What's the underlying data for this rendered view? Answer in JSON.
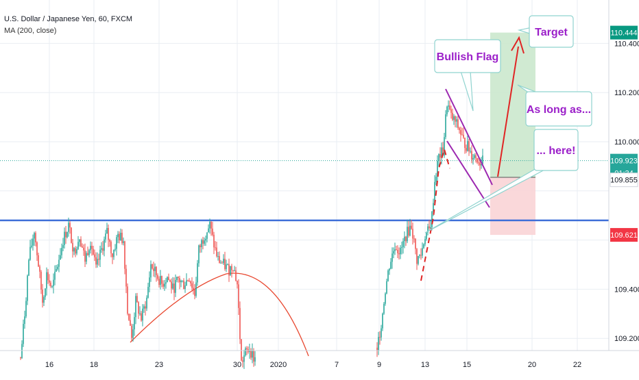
{
  "header": {
    "title": "U.S. Dollar / Japanese Yen, 60, FXCM",
    "indicator": "MA (200, close)"
  },
  "chart_data": {
    "type": "candlestick",
    "x_ticks": [
      "16",
      "18",
      "23",
      "30",
      "2020",
      "7",
      "9",
      "13",
      "15",
      "20",
      "22"
    ],
    "y_ticks": [
      "110.400",
      "110.200",
      "110.000",
      "109.400",
      "109.200"
    ],
    "ylim": [
      109.18,
      110.55
    ],
    "price_tags": [
      {
        "label": "110.444",
        "value": 110.444,
        "color": "#089981",
        "text_color": "#ffffff"
      },
      {
        "label": "109.923",
        "value": 109.923,
        "color": "#26a69a",
        "text_color": "#ffffff"
      },
      {
        "label": "01:34",
        "value": 109.873,
        "color": "#26a69a",
        "text_color": "#ffffff"
      },
      {
        "label": "109.855",
        "value": 109.845,
        "color": "#ffffff",
        "text_color": "#131722"
      },
      {
        "label": "109.621",
        "value": 109.621,
        "color": "#f23645",
        "text_color": "#ffffff"
      }
    ],
    "horizontal_level": 109.68,
    "current_price": 109.923,
    "annotations": [
      "Bullish Flag",
      "Target",
      "As long as...",
      "... here!"
    ],
    "colors": {
      "up": "#26a69a",
      "down": "#ef5350",
      "ma": "#e8472f",
      "level": "#3f6fd8",
      "flag": "#9c27b0",
      "callout_text": "#9b1fc9",
      "callout_border": "#8fd3cf",
      "target_zone": "#cbe8cd",
      "stop_zone": "#fad4d6"
    }
  }
}
